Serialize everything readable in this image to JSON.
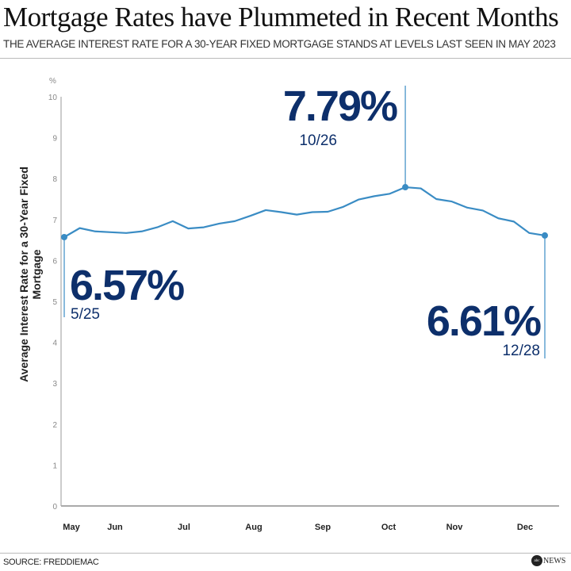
{
  "title": "Mortgage Rates have Plummeted in Recent Months",
  "subtitle": "THE AVERAGE INTEREST RATE FOR A 30-YEAR FIXED MORTGAGE STANDS AT LEVELS LAST SEEN IN MAY 2023",
  "source": "SOURCE: FREDDIEMAC",
  "logo": "abc NEWS",
  "colors": {
    "line": "#3a8cc4",
    "annotation": "#0d2f6b",
    "axis": "#aaaaaa"
  },
  "chart_data": {
    "type": "line",
    "title": "Mortgage Rates have Plummeted in Recent Months",
    "ylabel": "Average Interest Rate for a 30-Year Fixed Mortgage",
    "yunit": "%",
    "ylim": [
      0,
      10
    ],
    "yticks": [
      "0",
      "1",
      "2",
      "3",
      "4",
      "5",
      "6",
      "7",
      "8",
      "9",
      "10"
    ],
    "xticks": [
      "May",
      "Jun",
      "Jul",
      "Aug",
      "Sep",
      "Oct",
      "Nov",
      "Dec"
    ],
    "grid": false,
    "x": [
      "5/25",
      "6/1",
      "6/8",
      "6/15",
      "6/22",
      "6/29",
      "7/6",
      "7/13",
      "7/20",
      "7/27",
      "8/3",
      "8/10",
      "8/17",
      "8/24",
      "8/31",
      "9/7",
      "9/14",
      "9/21",
      "9/28",
      "10/5",
      "10/12",
      "10/19",
      "10/26",
      "11/2",
      "11/9",
      "11/16",
      "11/22",
      "11/30",
      "12/7",
      "12/14",
      "12/21",
      "12/28"
    ],
    "values": [
      6.57,
      6.79,
      6.71,
      6.69,
      6.67,
      6.71,
      6.81,
      6.96,
      6.78,
      6.81,
      6.9,
      6.96,
      7.09,
      7.23,
      7.18,
      7.12,
      7.18,
      7.19,
      7.31,
      7.49,
      7.57,
      7.63,
      7.79,
      7.76,
      7.5,
      7.44,
      7.29,
      7.22,
      7.03,
      6.95,
      6.67,
      6.61
    ],
    "annotations": [
      {
        "value": "6.57%",
        "date": "5/25",
        "index": 0
      },
      {
        "value": "7.79%",
        "date": "10/26",
        "index": 22
      },
      {
        "value": "6.61%",
        "date": "12/28",
        "index": 31
      }
    ]
  }
}
